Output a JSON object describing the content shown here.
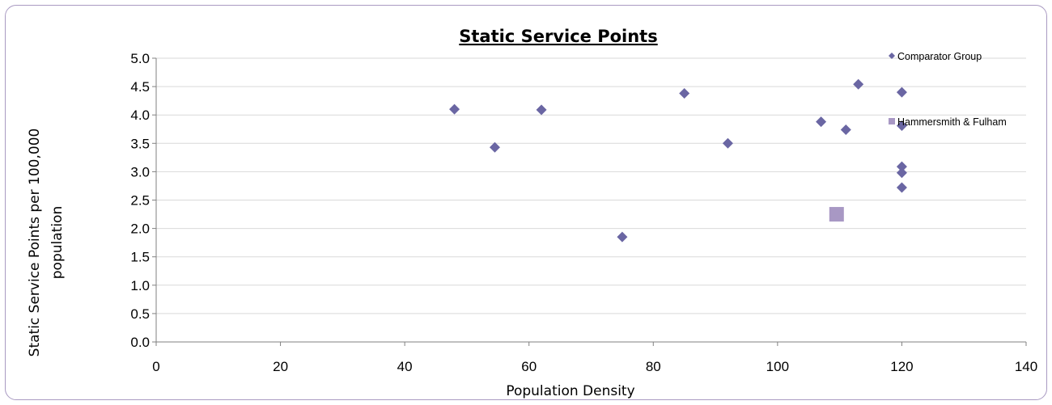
{
  "chart_data": {
    "type": "scatter",
    "title": "Static Service Points",
    "xlabel": "Population Density",
    "ylabel_lines": [
      "Static Service Points per 100,000",
      "population"
    ],
    "xlim": [
      0,
      140
    ],
    "ylim": [
      0,
      5
    ],
    "x_ticks": [
      0,
      20,
      40,
      60,
      80,
      100,
      120,
      140
    ],
    "y_ticks": [
      "0.0",
      "0.5",
      "1.0",
      "1.5",
      "2.0",
      "2.5",
      "3.0",
      "3.5",
      "4.0",
      "4.5",
      "5.0"
    ],
    "grid": "horizontal",
    "legend_position": "top-right",
    "series": [
      {
        "name": "Comparator Group",
        "marker": "diamond",
        "color": "#6a66a3",
        "points": [
          {
            "x": 48,
            "y": 4.1
          },
          {
            "x": 54.5,
            "y": 3.43
          },
          {
            "x": 62,
            "y": 4.09
          },
          {
            "x": 75,
            "y": 1.85
          },
          {
            "x": 85,
            "y": 4.38
          },
          {
            "x": 92,
            "y": 3.5
          },
          {
            "x": 107,
            "y": 3.88
          },
          {
            "x": 111,
            "y": 3.74
          },
          {
            "x": 113,
            "y": 4.54
          },
          {
            "x": 120,
            "y": 4.4
          },
          {
            "x": 120,
            "y": 3.81
          },
          {
            "x": 120,
            "y": 3.09
          },
          {
            "x": 120,
            "y": 2.98
          },
          {
            "x": 120,
            "y": 2.72
          }
        ]
      },
      {
        "name": "Hammersmith & Fulham",
        "marker": "square",
        "color": "#a898c4",
        "points": [
          {
            "x": 109.5,
            "y": 2.25
          }
        ]
      }
    ]
  }
}
